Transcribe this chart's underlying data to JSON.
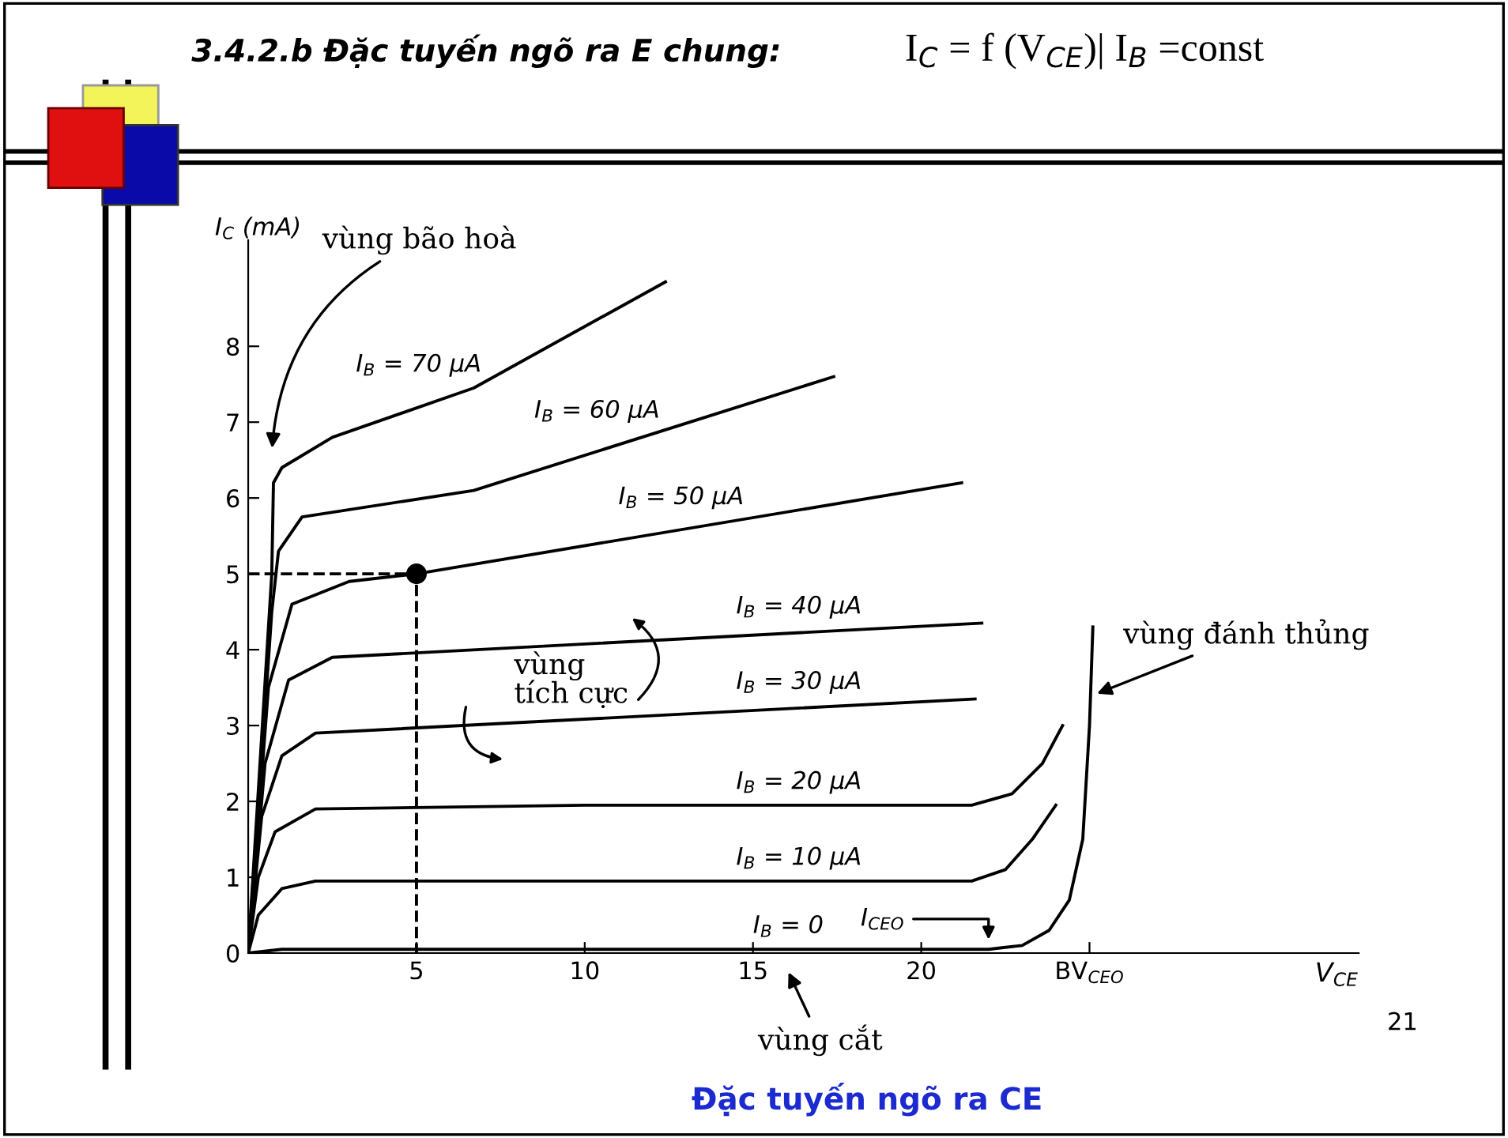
{
  "chart_data": {
    "type": "line",
    "title": "3.4.2.b Đặc tuyến ngõ ra E chung:",
    "subtitle": "I$_{C}$ = f (V$_{CE}$)| I$_{B}$ =const",
    "xlabel": "V$_{CE}$",
    "ylabel": "I$_{C}$ (mA)",
    "xlim": [
      0,
      33
    ],
    "ylim": [
      0,
      9.4
    ],
    "xticks": [
      5,
      10,
      15,
      20,
      {
        "value": 25,
        "label": "BV$_{CEO}$"
      }
    ],
    "yticks": [
      0,
      1,
      2,
      3,
      4,
      5,
      6,
      7,
      8
    ],
    "grid": false,
    "legend": false,
    "marker": "none",
    "line_style": "solid",
    "series": [
      {
        "name": "I$_{B}$ = 70 μA",
        "color": "#000000",
        "x": [
          0,
          0.7,
          0.75,
          1,
          2.5,
          6.7,
          12.4
        ],
        "values": [
          0,
          5,
          6.2,
          6.4,
          6.8,
          7.45,
          8.85
        ]
      },
      {
        "name": "I$_{B}$ = 60 μA",
        "color": "#000000",
        "x": [
          0,
          0.7,
          0.9,
          1.6,
          6.7,
          17.4
        ],
        "values": [
          0,
          4.5,
          5.3,
          5.75,
          6.1,
          7.6
        ]
      },
      {
        "name": "I$_{B}$ = 50 μA",
        "color": "#000000",
        "x": [
          0,
          0.6,
          1.3,
          3,
          5,
          21.2
        ],
        "values": [
          0,
          3.5,
          4.6,
          4.9,
          5,
          6.2
        ]
      },
      {
        "name": "I$_{B}$ = 40 μA",
        "color": "#000000",
        "x": [
          0,
          0.5,
          1.2,
          2.5,
          21.8
        ],
        "values": [
          0,
          2.5,
          3.6,
          3.9,
          4.35
        ]
      },
      {
        "name": "I$_{B}$ = 30 μA",
        "color": "#000000",
        "x": [
          0,
          0.4,
          1,
          2,
          21.6
        ],
        "values": [
          0,
          1.8,
          2.6,
          2.9,
          3.35
        ]
      },
      {
        "name": "I$_{B}$ = 20 μA",
        "color": "#000000",
        "x": [
          0,
          0.3,
          0.8,
          2,
          10,
          21.5,
          22.7,
          23.6,
          24.2
        ],
        "values": [
          0,
          1,
          1.6,
          1.9,
          1.95,
          1.95,
          2.1,
          2.5,
          3
        ]
      },
      {
        "name": "I$_{B}$ = 10 μA",
        "color": "#000000",
        "x": [
          0,
          0.3,
          1,
          2,
          10,
          21.5,
          22.5,
          23.3,
          24
        ],
        "values": [
          0,
          0.5,
          0.85,
          0.95,
          0.95,
          0.95,
          1.1,
          1.5,
          1.95
        ]
      },
      {
        "name": "I$_{B}$ = 0",
        "color": "#000000",
        "x": [
          0,
          1,
          10,
          22,
          23,
          23.8,
          24.4,
          24.8,
          25,
          25.1
        ],
        "values": [
          0,
          0.05,
          0.05,
          0.05,
          0.1,
          0.3,
          0.7,
          1.5,
          3,
          4.3
        ]
      },
      {
        "type": "line",
        "line_style": "dashed",
        "color": "#000000",
        "x": [
          0,
          5,
          5
        ],
        "values": [
          5,
          5,
          0
        ]
      },
      {
        "type": "scatter",
        "marker": "circle",
        "color": "#000000",
        "x": [
          5
        ],
        "values": [
          5
        ]
      }
    ],
    "annotations": [
      "vùng bão hoà",
      "vùng\ntích cực",
      {
        "text": "vùng đánh thủng",
        "x": 25.1,
        "y": 3.4
      },
      {
        "text": "I$_{CEO}$",
        "x": 22,
        "y": 0.12
      },
      "vùng cắt",
      "21",
      "Đặc tuyến ngõ ra CE"
    ]
  }
}
